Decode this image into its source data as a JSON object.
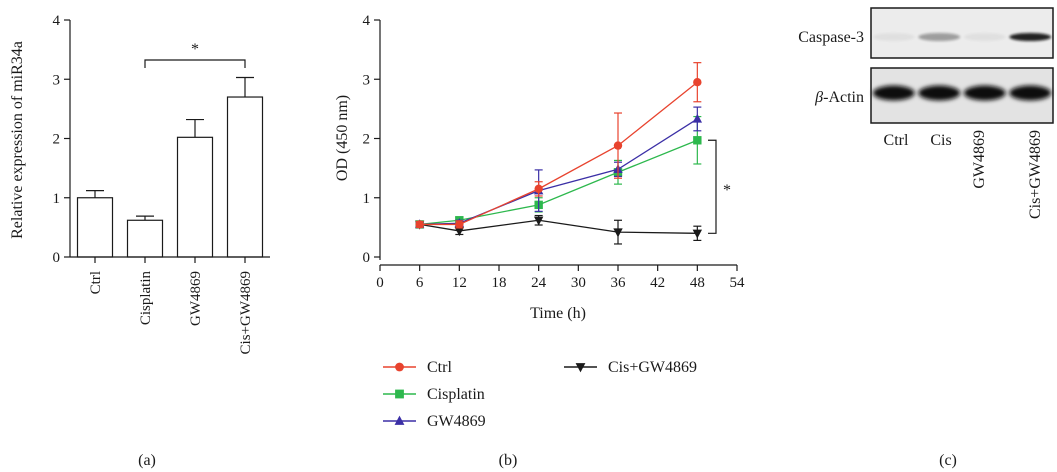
{
  "panel_labels": [
    "(a)",
    "(b)",
    "(c)"
  ],
  "chart_data": [
    {
      "type": "bar",
      "ylabel": "Relative expression of miR34a",
      "xlabel": "",
      "categories": [
        "Ctrl",
        "Cisplatin",
        "GW4869",
        "Cis+GW4869"
      ],
      "values": [
        1.0,
        0.62,
        2.02,
        2.7
      ],
      "errors": [
        0.12,
        0.07,
        0.3,
        0.33
      ],
      "ylim": [
        0,
        4
      ],
      "yticks": [
        0,
        1,
        2,
        3,
        4
      ],
      "significance": {
        "from": "Cisplatin",
        "to": "Cis+GW4869",
        "label": "*"
      },
      "colors": {
        "bar_fill": "#ffffff",
        "bar_edge": "#1a1a1a"
      }
    },
    {
      "type": "line",
      "xlabel": "Time (h)",
      "ylabel": "OD (450 nm)",
      "x": [
        6,
        12,
        24,
        36,
        48
      ],
      "xlim": [
        0,
        54
      ],
      "xticks": [
        0,
        6,
        12,
        18,
        24,
        30,
        36,
        42,
        48,
        54
      ],
      "ylim": [
        0,
        4
      ],
      "yticks": [
        0,
        1,
        2,
        3,
        4
      ],
      "series": [
        {
          "name": "Ctrl",
          "values": [
            0.55,
            0.55,
            1.15,
            1.88,
            2.95
          ],
          "errors": [
            0.05,
            0.06,
            0.12,
            0.55,
            0.33
          ],
          "color": "#e8432e",
          "marker": "circle"
        },
        {
          "name": "Cisplatin",
          "values": [
            0.55,
            0.62,
            0.88,
            1.43,
            1.97
          ],
          "errors": [
            0.04,
            0.05,
            0.12,
            0.2,
            0.4
          ],
          "color": "#2db84d",
          "marker": "square"
        },
        {
          "name": "GW4869",
          "values": [
            0.55,
            0.57,
            1.12,
            1.48,
            2.33
          ],
          "errors": [
            0.04,
            0.05,
            0.35,
            0.12,
            0.2
          ],
          "color": "#3b2fa6",
          "marker": "triangle-up"
        },
        {
          "name": "Cis+GW4869",
          "values": [
            0.55,
            0.44,
            0.62,
            0.42,
            0.4
          ],
          "errors": [
            0.04,
            0.06,
            0.08,
            0.2,
            0.12
          ],
          "color": "#1a1a1a",
          "marker": "triangle-down"
        }
      ],
      "significance": {
        "label": "*"
      },
      "legend_placement": "bottom"
    }
  ],
  "blot": {
    "rows": [
      "Caspase-3",
      "β-Actin"
    ],
    "row_label_prefix": "β",
    "row_label_suffix": "-Actin",
    "lanes": [
      "Ctrl",
      "Cis",
      "GW4869",
      "Cis+GW4869"
    ],
    "caspase_band_intensity": [
      0.05,
      0.35,
      0.05,
      0.9
    ],
    "actin_band_intensity": [
      1,
      1,
      1,
      1
    ]
  }
}
